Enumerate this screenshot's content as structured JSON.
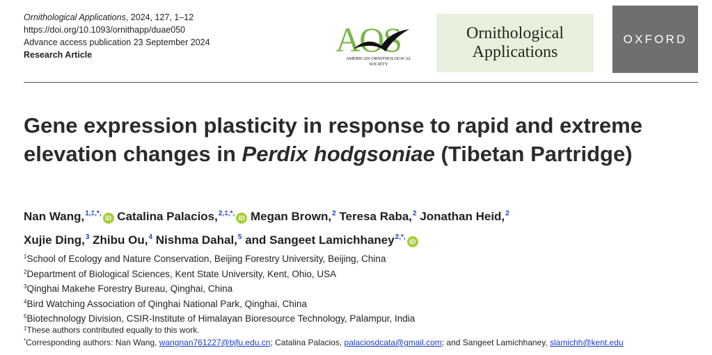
{
  "header": {
    "journal_citation": "Ornithological Applications",
    "volume_pages": ", 2024, 127, 1–12",
    "doi": "https://doi.org/10.1093/ornithapp/duae050",
    "publication_date": "Advance access publication 23 September 2024",
    "article_type": "Research Article",
    "aos_letters": "AOS",
    "aos_society_line1": "AMERICAN ORNITHOLOGICAL",
    "aos_society_line2": "SOCIETY",
    "journal_box_line1": "Ornithological",
    "journal_box_line2": "Applications",
    "publisher": "OXFORD"
  },
  "title": {
    "part1": "Gene expression plasticity in response to rapid and extreme elevation changes in ",
    "species_italic": "Perdix hodgsoniae",
    "part2": " (Tibetan Partridge)"
  },
  "authors": [
    {
      "name": "Nan Wang,",
      "sup": "1,‡,*,",
      "orcid": true
    },
    {
      "name": "Catalina Palacios,",
      "sup": "2,‡,*,",
      "orcid": true
    },
    {
      "name": "Megan Brown,",
      "sup": "2",
      "orcid": false
    },
    {
      "name": "Teresa Raba,",
      "sup": "2",
      "orcid": false
    },
    {
      "name": "Jonathan Heid,",
      "sup": "2",
      "orcid": false
    },
    {
      "name": "Xujie Ding,",
      "sup": "3",
      "orcid": false
    },
    {
      "name": "Zhibu Ou,",
      "sup": "4",
      "orcid": false
    },
    {
      "name": "Nishma Dahal,",
      "sup": "5",
      "orcid": false
    },
    {
      "name": "and Sangeet Lamichhaney",
      "sup": "2,*,",
      "orcid": true
    }
  ],
  "orcid_label": "iD",
  "affiliations": [
    {
      "num": "1",
      "text": "School of Ecology and Nature Conservation, Beijing Forestry University, Beijing, China"
    },
    {
      "num": "2",
      "text": "Department of Biological Sciences, Kent State University, Kent, Ohio, USA"
    },
    {
      "num": "3",
      "text": "Qinghai Makehe Forestry Bureau, Qinghai, China"
    },
    {
      "num": "4",
      "text": "Bird Watching Association of Qinghai National Park, Qinghai, China"
    },
    {
      "num": "5",
      "text": "Biotechnology Division, CSIR-Institute of Himalayan Bioresource Technology, Palampur, India"
    }
  ],
  "notes": {
    "equal_mark": "‡",
    "equal_text": "These authors contributed equally to this work.",
    "corr_mark": "*",
    "corr_prefix": "Corresponding authors: Nan Wang, ",
    "email1": "wangnan761227@bjfu.edu.cn",
    "corr_mid1": "; Catalina Palacios, ",
    "email2": "palaciosdcata@gmail.com",
    "corr_mid2": "; and Sangeet Lamichhaney, ",
    "email3": "slamichh@kent.edu"
  },
  "colors": {
    "link": "#1a3ec8",
    "orcid": "#a6ce39",
    "journal_box_bg": "#e6f0dc",
    "oxford_bg": "#6f6f6f",
    "aos_green": "#7ab648"
  }
}
